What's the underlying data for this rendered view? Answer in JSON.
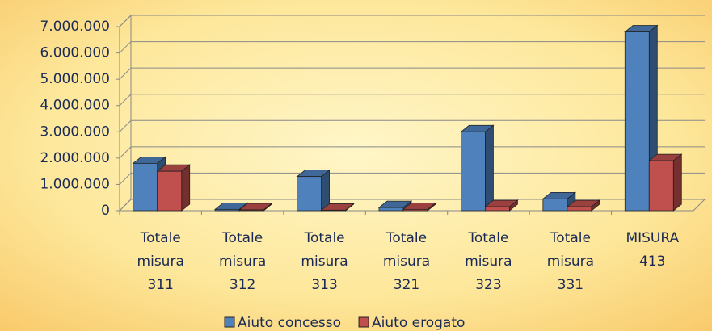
{
  "chart_data": {
    "type": "bar3d",
    "categories": [
      "Totale misura 311",
      "Totale misura 312",
      "Totale misura 313",
      "Totale misura 321",
      "Totale misura 323",
      "Totale misura 331",
      "MISURA 413"
    ],
    "series": [
      {
        "name": "Aiuto concesso",
        "color": "#4f81bd",
        "values": [
          1800000,
          50000,
          1300000,
          120000,
          3000000,
          450000,
          6800000
        ]
      },
      {
        "name": "Aiuto erogato",
        "color": "#c0504d",
        "values": [
          1500000,
          30000,
          20000,
          50000,
          150000,
          150000,
          1900000
        ]
      }
    ],
    "ylim": [
      0,
      7000000
    ],
    "yticks": [
      0,
      {
        "value": 1000000,
        "label": "1.000.000"
      },
      {
        "value": 2000000,
        "label": "2.000.000"
      },
      {
        "value": 3000000,
        "label": "3.000.000"
      },
      {
        "value": 4000000,
        "label": "4.000.000"
      },
      {
        "value": 5000000,
        "label": "5.000.000"
      },
      {
        "value": 6000000,
        "label": "6.000.000"
      },
      {
        "value": 7000000,
        "label": "7.000.000"
      }
    ],
    "grid": true,
    "legend": "bottom"
  }
}
